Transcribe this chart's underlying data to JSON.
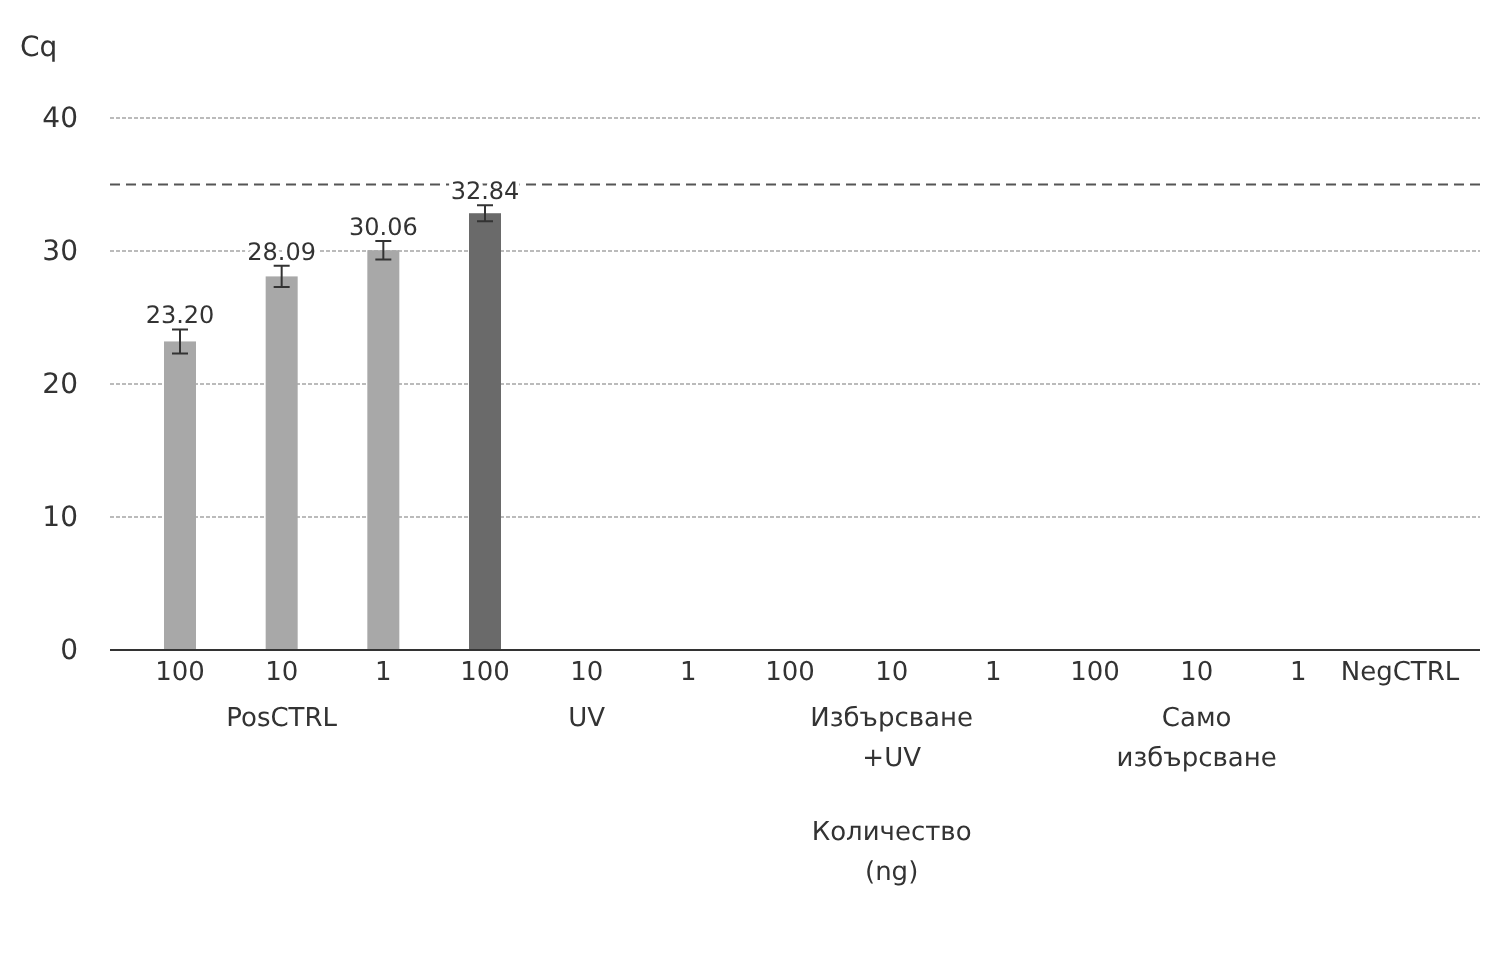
{
  "chart_data": {
    "type": "bar",
    "ylabel": "Cq",
    "categories": [
      "100",
      "10",
      "1",
      "100",
      "10",
      "1",
      "100",
      "10",
      "1",
      "100",
      "10",
      "1",
      "NegCTRL"
    ],
    "series": [
      {
        "color": "#a8a8a8",
        "values": [
          23.2,
          28.09,
          30.06,
          null,
          null,
          null,
          null,
          null,
          null,
          null,
          null,
          null,
          null
        ],
        "value_labels": [
          "23.20",
          "28.09",
          "30.06",
          null,
          null,
          null,
          null,
          null,
          null,
          null,
          null,
          null,
          null
        ],
        "errors": [
          0.9,
          0.8,
          0.7,
          null,
          null,
          null,
          null,
          null,
          null,
          null,
          null,
          null,
          null
        ]
      },
      {
        "color": "#6a6a6a",
        "values": [
          null,
          null,
          null,
          32.84,
          null,
          null,
          null,
          null,
          null,
          null,
          null,
          null,
          null
        ],
        "value_labels": [
          null,
          null,
          null,
          "32.84",
          null,
          null,
          null,
          null,
          null,
          null,
          null,
          null,
          null
        ],
        "errors": [
          null,
          null,
          null,
          0.6,
          null,
          null,
          null,
          null,
          null,
          null,
          null,
          null,
          null
        ]
      }
    ],
    "ylim": [
      0,
      40
    ],
    "yticks": [
      0,
      10,
      20,
      30,
      40
    ],
    "grid": "y",
    "ref_lines": [
      {
        "axis": "y",
        "value": 35,
        "line_style": "dashed",
        "color": "#555555"
      }
    ],
    "annotations": [
      "PosCTRL",
      "UV",
      "Избърсване +UV",
      "Само избърсване",
      "Количество (ng)"
    ]
  }
}
